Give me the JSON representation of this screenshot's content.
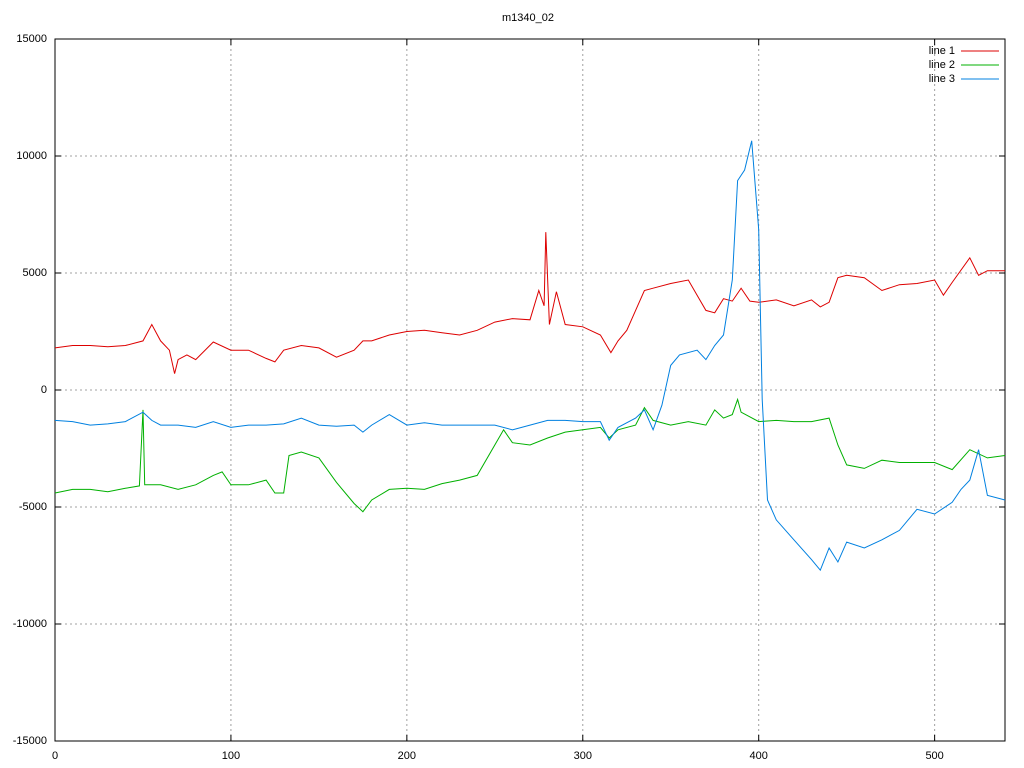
{
  "chart_data": {
    "type": "line",
    "title": "m1340_02",
    "xlim": [
      0,
      540
    ],
    "ylim": [
      -15000,
      15000
    ],
    "xticks": [
      0,
      100,
      200,
      300,
      400,
      500
    ],
    "yticks": [
      -15000,
      -10000,
      -5000,
      0,
      5000,
      10000,
      15000
    ],
    "grid": true,
    "legend": "top-right",
    "series": [
      {
        "name": "line 1",
        "color": "#dd0000",
        "x": [
          0,
          10,
          20,
          30,
          40,
          50,
          55,
          60,
          65,
          68,
          70,
          75,
          80,
          90,
          100,
          110,
          120,
          125,
          130,
          140,
          150,
          160,
          170,
          175,
          180,
          190,
          200,
          210,
          220,
          230,
          240,
          250,
          260,
          270,
          275,
          278,
          279,
          281,
          285,
          290,
          300,
          310,
          316,
          320,
          325,
          330,
          335,
          340,
          350,
          360,
          365,
          370,
          375,
          380,
          385,
          390,
          395,
          400,
          410,
          420,
          430,
          435,
          440,
          445,
          450,
          460,
          470,
          480,
          490,
          500,
          505,
          510,
          520,
          525,
          530,
          540
        ],
        "values": [
          1800,
          1900,
          1900,
          1850,
          1900,
          2100,
          2800,
          2100,
          1700,
          700,
          1300,
          1500,
          1300,
          2050,
          1700,
          1700,
          1350,
          1200,
          1700,
          1900,
          1800,
          1400,
          1700,
          2100,
          2100,
          2350,
          2500,
          2550,
          2450,
          2350,
          2550,
          2900,
          3050,
          3000,
          4250,
          3600,
          6750,
          2800,
          4200,
          2800,
          2700,
          2350,
          1600,
          2100,
          2550,
          3400,
          4250,
          4350,
          4550,
          4700,
          4050,
          3400,
          3300,
          3900,
          3800,
          4350,
          3800,
          3750,
          3850,
          3600,
          3850,
          3550,
          3750,
          4800,
          4900,
          4800,
          4250,
          4500,
          4550,
          4700,
          4050,
          4600,
          5650,
          4900,
          5100,
          5100
        ]
      },
      {
        "name": "line 2",
        "color": "#00b000",
        "x": [
          0,
          10,
          20,
          30,
          40,
          48,
          50,
          51,
          60,
          70,
          80,
          90,
          95,
          100,
          110,
          120,
          125,
          130,
          133,
          140,
          150,
          160,
          170,
          175,
          180,
          190,
          200,
          210,
          220,
          230,
          240,
          250,
          255,
          260,
          270,
          280,
          290,
          300,
          310,
          315,
          320,
          330,
          335,
          340,
          350,
          360,
          370,
          375,
          380,
          385,
          388,
          390,
          400,
          410,
          420,
          430,
          440,
          445,
          450,
          460,
          470,
          480,
          490,
          500,
          510,
          520,
          530,
          540
        ],
        "values": [
          -4400,
          -4250,
          -4250,
          -4350,
          -4200,
          -4100,
          -850,
          -4050,
          -4050,
          -4250,
          -4050,
          -3650,
          -3500,
          -4050,
          -4050,
          -3850,
          -4400,
          -4400,
          -2800,
          -2650,
          -2900,
          -3950,
          -4850,
          -5200,
          -4700,
          -4250,
          -4200,
          -4250,
          -4000,
          -3850,
          -3650,
          -2350,
          -1700,
          -2250,
          -2350,
          -2050,
          -1800,
          -1700,
          -1600,
          -2050,
          -1700,
          -1500,
          -750,
          -1300,
          -1500,
          -1350,
          -1500,
          -850,
          -1200,
          -1050,
          -400,
          -950,
          -1350,
          -1300,
          -1350,
          -1350,
          -1200,
          -2350,
          -3200,
          -3350,
          -3000,
          -3100,
          -3100,
          -3100,
          -3400,
          -2550,
          -2900,
          -2800
        ]
      },
      {
        "name": "line 3",
        "color": "#0080e0",
        "x": [
          0,
          10,
          20,
          30,
          40,
          50,
          55,
          60,
          70,
          80,
          90,
          100,
          110,
          120,
          130,
          140,
          150,
          160,
          170,
          175,
          180,
          190,
          200,
          210,
          220,
          230,
          240,
          250,
          260,
          270,
          280,
          290,
          300,
          310,
          315,
          320,
          330,
          335,
          340,
          345,
          350,
          355,
          365,
          370,
          375,
          380,
          385,
          388,
          392,
          396,
          400,
          402,
          405,
          410,
          420,
          430,
          435,
          440,
          445,
          450,
          460,
          470,
          480,
          490,
          500,
          510,
          515,
          520,
          525,
          530,
          540
        ],
        "values": [
          -1300,
          -1350,
          -1500,
          -1450,
          -1350,
          -950,
          -1300,
          -1500,
          -1500,
          -1600,
          -1350,
          -1600,
          -1500,
          -1500,
          -1450,
          -1200,
          -1500,
          -1550,
          -1500,
          -1800,
          -1500,
          -1050,
          -1500,
          -1400,
          -1500,
          -1500,
          -1500,
          -1500,
          -1700,
          -1500,
          -1300,
          -1300,
          -1350,
          -1350,
          -2150,
          -1600,
          -1200,
          -850,
          -1700,
          -650,
          1050,
          1500,
          1700,
          1300,
          1900,
          2350,
          4700,
          8950,
          9400,
          10650,
          6850,
          -400,
          -4700,
          -5550,
          -6400,
          -7250,
          -7700,
          -6750,
          -7350,
          -6500,
          -6750,
          -6400,
          -6000,
          -5100,
          -5300,
          -4800,
          -4250,
          -3850,
          -2550,
          -4500,
          -4700
        ]
      }
    ]
  }
}
